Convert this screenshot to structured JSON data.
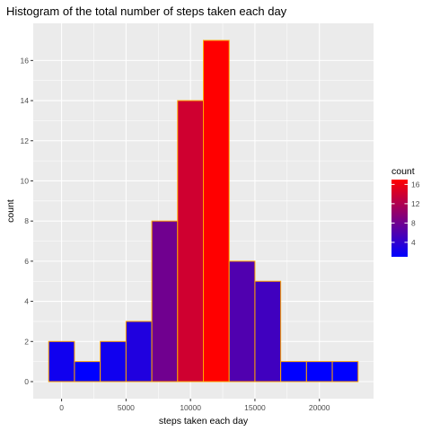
{
  "chart_data": {
    "type": "bar",
    "subtype": "histogram",
    "title": "Histogram of the total number of steps taken each day",
    "xlabel": "steps taken each day",
    "ylabel": "count",
    "bins": [
      {
        "x0": -1000,
        "x1": 1000,
        "count": 2
      },
      {
        "x0": 1000,
        "x1": 3000,
        "count": 1
      },
      {
        "x0": 3000,
        "x1": 5000,
        "count": 2
      },
      {
        "x0": 5000,
        "x1": 7000,
        "count": 3
      },
      {
        "x0": 7000,
        "x1": 9000,
        "count": 8
      },
      {
        "x0": 9000,
        "x1": 11000,
        "count": 14
      },
      {
        "x0": 11000,
        "x1": 13000,
        "count": 17
      },
      {
        "x0": 13000,
        "x1": 15000,
        "count": 6
      },
      {
        "x0": 15000,
        "x1": 17000,
        "count": 5
      },
      {
        "x0": 17000,
        "x1": 19000,
        "count": 1
      },
      {
        "x0": 19000,
        "x1": 21000,
        "count": 1
      },
      {
        "x0": 21000,
        "x1": 23000,
        "count": 1
      }
    ],
    "xlim": [
      -2200,
      24200
    ],
    "ylim": [
      -0.85,
      17.85
    ],
    "x_ticks": [
      0,
      5000,
      10000,
      15000,
      20000
    ],
    "y_ticks": [
      0,
      2,
      4,
      6,
      8,
      10,
      12,
      14,
      16
    ],
    "grid": true,
    "bar_outline_color": "#FFA500",
    "panel_background": "#EBEBEB",
    "grid_color": "#FFFFFF",
    "legend": {
      "title": "count",
      "position": "right",
      "ticks": [
        4,
        8,
        12,
        16
      ],
      "low_color": "#0000FF",
      "high_color": "#FF0000",
      "range": [
        1,
        17
      ]
    }
  }
}
